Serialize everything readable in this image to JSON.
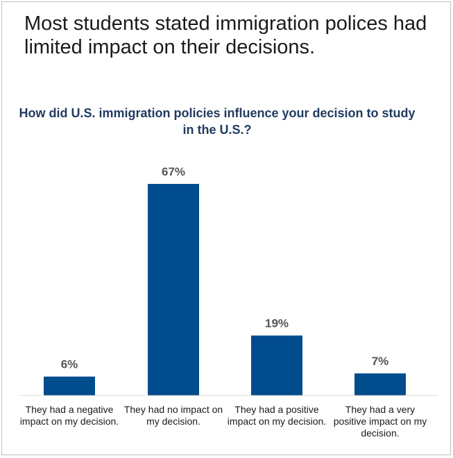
{
  "headline": "Most students stated immigration polices had limited impact on their decisions.",
  "chart_data": {
    "type": "bar",
    "title": "How did U.S. immigration policies influence your decision to study in the U.S.?",
    "categories": [
      "They had a negative impact on my decision.",
      "They had no impact on my decision.",
      "They had a positive impact on my decision.",
      "They had a very positive impact on my decision."
    ],
    "values": [
      6,
      67,
      19,
      7
    ],
    "value_labels": [
      "6%",
      "67%",
      "19%",
      "7%"
    ],
    "unit": "%",
    "bar_color": "#004c8c",
    "grid": false,
    "legend": "none"
  }
}
